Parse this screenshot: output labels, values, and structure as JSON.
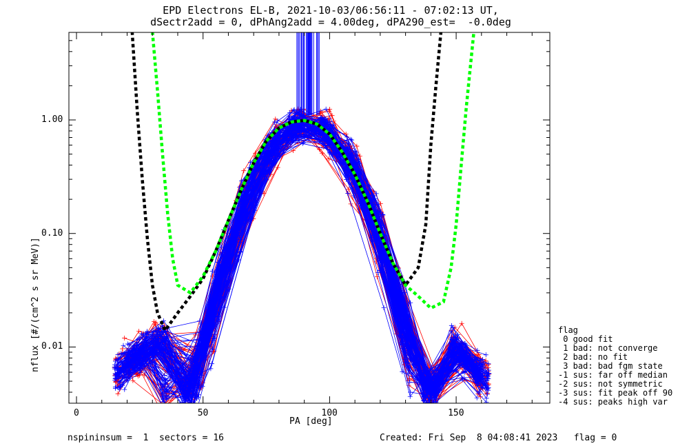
{
  "title_line1": "EPD Electrons EL-B, 2021-10-03/06:56:11 - 07:02:13 UT,",
  "title_line2": "dSectr2add = 0, dPhAng2add = 4.00deg, dPA290_est=  -0.0deg",
  "footer": {
    "left": "nspininsum =  1  sectors = 16",
    "right": "Created: Fri Sep  8 04:08:41 2023   flag = 0"
  },
  "legend": {
    "header": "flag",
    "items": [
      " 0 good fit",
      " 1 bad: not converge",
      " 2 bad: no fit",
      " 3 bad: bad fgm state",
      "-1 sus: far off median",
      "-2 sus: not symmetric",
      "-3 sus: fit peak off 90",
      "-4 sus: peaks high var"
    ]
  },
  "colors": {
    "blue": "#0000ff",
    "red": "#ff0000",
    "green": "#00ff00",
    "black": "#000000"
  },
  "chart_data": {
    "type": "line",
    "xlabel": "PA [deg]",
    "ylabel": "nflux [#/(cm^2 s sr MeV)]",
    "xlim": [
      -3,
      187
    ],
    "ylim": [
      0.0032,
      5.9
    ],
    "yscale": "log",
    "xticks": [
      0,
      50,
      100,
      150
    ],
    "yticks": [
      0.01,
      0.1,
      1.0
    ],
    "ytick_labels": [
      "0.01",
      "0.10",
      "1.00"
    ],
    "series": [
      {
        "style": "dashed-thick",
        "color": "#000000",
        "x": [
          22,
          24,
          26,
          28,
          30,
          32,
          35,
          40,
          45,
          50,
          55,
          60,
          65,
          70,
          75,
          80,
          85,
          90,
          95,
          100,
          105,
          110,
          115,
          120,
          125,
          130,
          135,
          138,
          140,
          142,
          144
        ],
        "y": [
          6.0,
          1.2,
          0.3,
          0.09,
          0.035,
          0.02,
          0.014,
          0.02,
          0.028,
          0.04,
          0.07,
          0.13,
          0.24,
          0.42,
          0.65,
          0.85,
          0.96,
          0.99,
          0.92,
          0.75,
          0.52,
          0.33,
          0.19,
          0.1,
          0.055,
          0.035,
          0.05,
          0.12,
          0.6,
          2.0,
          6.0
        ]
      },
      {
        "style": "dashed-thick",
        "color": "#00ff00",
        "x": [
          30,
          32,
          34,
          36,
          38,
          40,
          45,
          50,
          55,
          60,
          65,
          70,
          75,
          80,
          85,
          90,
          95,
          100,
          105,
          110,
          115,
          120,
          125,
          130,
          135,
          140,
          145,
          148,
          150,
          152,
          154,
          157
        ],
        "y": [
          6.0,
          1.8,
          0.5,
          0.15,
          0.06,
          0.035,
          0.03,
          0.042,
          0.07,
          0.13,
          0.24,
          0.42,
          0.65,
          0.85,
          0.96,
          0.99,
          0.92,
          0.75,
          0.52,
          0.33,
          0.19,
          0.1,
          0.055,
          0.035,
          0.028,
          0.022,
          0.025,
          0.05,
          0.12,
          0.4,
          1.3,
          6.0
        ]
      }
    ]
  }
}
